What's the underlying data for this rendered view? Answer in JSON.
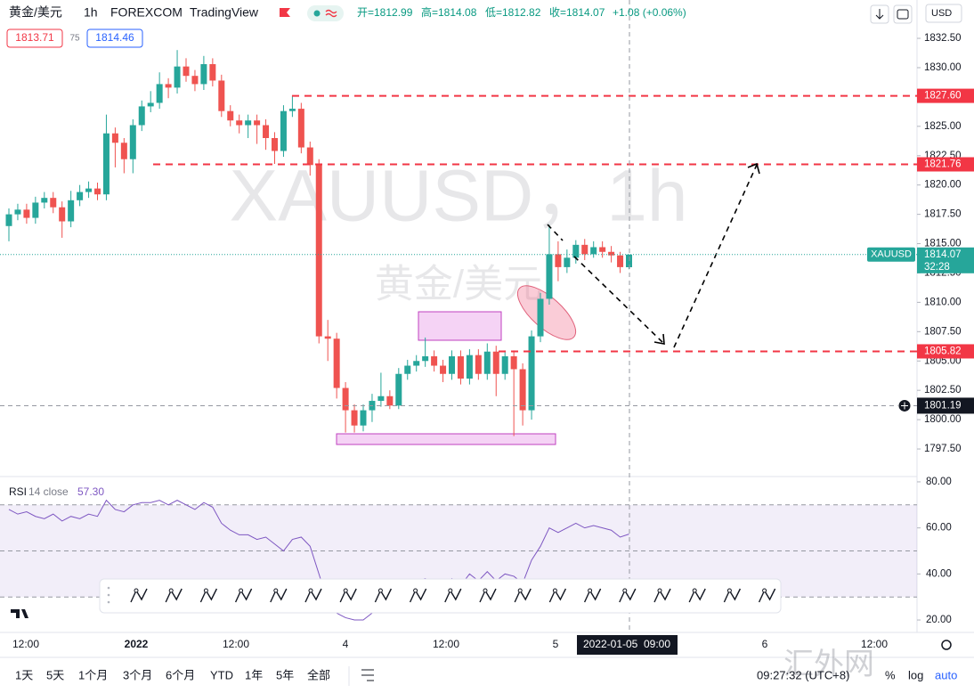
{
  "header": {
    "symbol": "黄金/美元",
    "interval": "1h",
    "exchange": "FOREXCOM",
    "source": "TradingView",
    "ohlc": [
      "开=1812.99",
      "高=1814.08",
      "低=1812.82",
      "收=1814.07",
      "+1.08 (+0.06%)"
    ],
    "bid": "1813.71",
    "spread": "75",
    "ask": "1814.46",
    "currency": "USD"
  },
  "watermark": {
    "main": "XAUUSD，1h",
    "sub": "黄金/美元"
  },
  "chart_data": [
    {
      "type": "candlestick",
      "up_color": "#26a69a",
      "down_color": "#ef5350",
      "open": [
        1816.5,
        1817.5,
        1817.9,
        1817.2,
        1818.5,
        1818.9,
        1818.1,
        1816.9,
        1818.7,
        1819.4,
        1819.7,
        1819.2,
        1824.4,
        1823.6,
        1822.2,
        1825.1,
        1826.7,
        1827.0,
        1828.6,
        1828.3,
        1830.1,
        1829.3,
        1828.6,
        1830.3,
        1828.9,
        1826.3,
        1825.5,
        1825.1,
        1825.5,
        1825.1,
        1824.0,
        1822.9,
        1826.3,
        1826.5,
        1823.2,
        1821.7,
        1807.1,
        1806.9,
        1802.7,
        1800.8,
        1799.5,
        1800.8,
        1801.6,
        1802.0,
        1801.2,
        1803.9,
        1804.6,
        1805.0,
        1805.4,
        1804.6,
        1803.9,
        1805.4,
        1803.5,
        1805.5,
        1803.9,
        1805.8,
        1803.9,
        1805.4,
        1804.3,
        1800.8,
        1807.1,
        1810.3,
        1814.1,
        1813.0,
        1813.8,
        1814.9,
        1814.1,
        1814.7,
        1814.3,
        1814.0,
        1812.99
      ],
      "high": [
        1818.0,
        1818.4,
        1818.4,
        1819.0,
        1819.4,
        1819.4,
        1818.6,
        1819.5,
        1820.0,
        1820.3,
        1820.2,
        1826.0,
        1824.9,
        1824.0,
        1825.6,
        1827.2,
        1828.0,
        1829.6,
        1829.1,
        1831.5,
        1830.8,
        1829.8,
        1831.0,
        1830.8,
        1829.4,
        1826.8,
        1826.0,
        1826.0,
        1826.0,
        1825.6,
        1824.5,
        1826.8,
        1827.6,
        1827.0,
        1823.7,
        1822.2,
        1808.5,
        1807.4,
        1803.2,
        1801.3,
        1801.3,
        1802.2,
        1804.0,
        1802.5,
        1804.4,
        1805.1,
        1805.5,
        1807.0,
        1805.9,
        1805.1,
        1805.9,
        1805.9,
        1806.0,
        1806.0,
        1806.5,
        1806.3,
        1805.9,
        1805.9,
        1804.8,
        1807.6,
        1810.8,
        1816.6,
        1815.2,
        1814.5,
        1815.3,
        1815.4,
        1815.2,
        1815.2,
        1814.8,
        1814.3,
        1814.08
      ],
      "low": [
        1815.2,
        1817.0,
        1816.7,
        1816.7,
        1818.0,
        1817.6,
        1815.5,
        1816.4,
        1818.2,
        1818.9,
        1818.7,
        1818.7,
        1821.5,
        1821.0,
        1821.0,
        1824.6,
        1826.2,
        1826.5,
        1827.4,
        1827.8,
        1828.8,
        1828.0,
        1828.1,
        1828.4,
        1825.8,
        1825.0,
        1824.4,
        1824.0,
        1823.5,
        1823.0,
        1821.8,
        1822.4,
        1825.8,
        1822.7,
        1820.8,
        1806.5,
        1805.0,
        1801.8,
        1798.9,
        1798.9,
        1799.0,
        1799.8,
        1801.1,
        1800.9,
        1800.9,
        1803.4,
        1804.1,
        1804.5,
        1804.1,
        1803.2,
        1803.4,
        1803.0,
        1803.0,
        1803.4,
        1803.4,
        1802.0,
        1803.4,
        1798.6,
        1799.5,
        1800.0,
        1806.6,
        1809.8,
        1811.8,
        1812.5,
        1813.3,
        1813.6,
        1813.8,
        1813.8,
        1813.4,
        1812.5,
        1812.82
      ],
      "close": [
        1817.5,
        1817.9,
        1817.2,
        1818.5,
        1818.9,
        1818.1,
        1816.9,
        1818.7,
        1819.4,
        1819.7,
        1819.2,
        1824.4,
        1823.6,
        1822.2,
        1825.1,
        1826.7,
        1827.0,
        1828.6,
        1828.3,
        1830.1,
        1829.3,
        1828.6,
        1830.3,
        1828.9,
        1826.3,
        1825.5,
        1825.1,
        1825.5,
        1825.1,
        1824.0,
        1822.9,
        1826.3,
        1826.5,
        1823.2,
        1821.7,
        1807.1,
        1806.9,
        1802.7,
        1800.8,
        1799.5,
        1800.8,
        1801.6,
        1802.0,
        1801.2,
        1803.9,
        1804.6,
        1805.0,
        1805.4,
        1804.6,
        1803.9,
        1805.4,
        1803.5,
        1805.5,
        1803.9,
        1805.8,
        1803.9,
        1805.4,
        1804.3,
        1800.8,
        1807.1,
        1810.3,
        1814.1,
        1813.0,
        1813.8,
        1814.9,
        1814.1,
        1814.7,
        1814.3,
        1814.0,
        1813.0,
        1814.07
      ],
      "ylim": [
        1795.15,
        1833.49
      ],
      "yticks": [
        {
          "value": 1832.5,
          "label": "1832.50"
        },
        {
          "value": 1830,
          "label": "1830.00"
        },
        {
          "value": 1827.5,
          "label": "1827.50"
        },
        {
          "value": 1825,
          "label": "1825.00"
        },
        {
          "value": 1822.5,
          "label": "1822.50"
        },
        {
          "value": 1820,
          "label": "1820.00"
        },
        {
          "value": 1817.5,
          "label": "1817.50"
        },
        {
          "value": 1815,
          "label": "1815.00"
        },
        {
          "value": 1812.5,
          "label": "1812.50"
        },
        {
          "value": 1810,
          "label": "1810.00"
        },
        {
          "value": 1807.5,
          "label": "1807.50"
        },
        {
          "value": 1805,
          "label": "1805.00"
        },
        {
          "value": 1802.5,
          "label": "1802.50"
        },
        {
          "value": 1800,
          "label": "1800.00"
        },
        {
          "value": 1797.5,
          "label": "1797.50"
        }
      ],
      "levels": [
        {
          "value": 1827.6,
          "label": "1827.60"
        },
        {
          "value": 1821.76,
          "label": "1821.76"
        },
        {
          "value": 1805.82,
          "label": "1805.82"
        }
      ],
      "level_color": "#f23645",
      "last": {
        "value": 1814.07,
        "symbol": "XAUUSD",
        "countdown": "32:28"
      },
      "crosshair": {
        "price": 1801.19,
        "time": "2022-01-05  09:00"
      },
      "x_labels": [
        "12:00",
        "2022",
        "12:00",
        "4",
        "12:00",
        "5",
        "6",
        "12:00"
      ]
    },
    {
      "type": "line",
      "name": "RSI",
      "params": "14 close",
      "value_label": "57.30",
      "color": "#7e57c2",
      "values": [
        68,
        66,
        67,
        65,
        64,
        66,
        63,
        65,
        64,
        66,
        65,
        72,
        68,
        67,
        70,
        71,
        71,
        72,
        70,
        72,
        70,
        68,
        71,
        69,
        62,
        59,
        57,
        57,
        55,
        56,
        53,
        50,
        55,
        56,
        52,
        40,
        28,
        23,
        21,
        20,
        20,
        23,
        26,
        25,
        32,
        35,
        37,
        38,
        36,
        34,
        38,
        35,
        40,
        37,
        41,
        37,
        40,
        39,
        36,
        46,
        52,
        60,
        58,
        60,
        62,
        60,
        61,
        60,
        59,
        56,
        57.3
      ],
      "levels": [
        70,
        50,
        30
      ],
      "ylim": [
        14.6,
        82.3
      ],
      "yticks": [
        {
          "value": 80,
          "label": "80.00"
        },
        {
          "value": 60,
          "label": "60.00"
        },
        {
          "value": 40,
          "label": "40.00"
        },
        {
          "value": 20,
          "label": "20.00"
        }
      ]
    }
  ],
  "footer": {
    "ranges": [
      "1天",
      "5天",
      "1个月",
      "3个月",
      "6个月",
      "YTD",
      "1年",
      "5年",
      "全部"
    ],
    "clock": "09:27:32 (UTC+8)",
    "percent": "%",
    "log": "log",
    "auto": "auto",
    "site": "汇外网"
  }
}
